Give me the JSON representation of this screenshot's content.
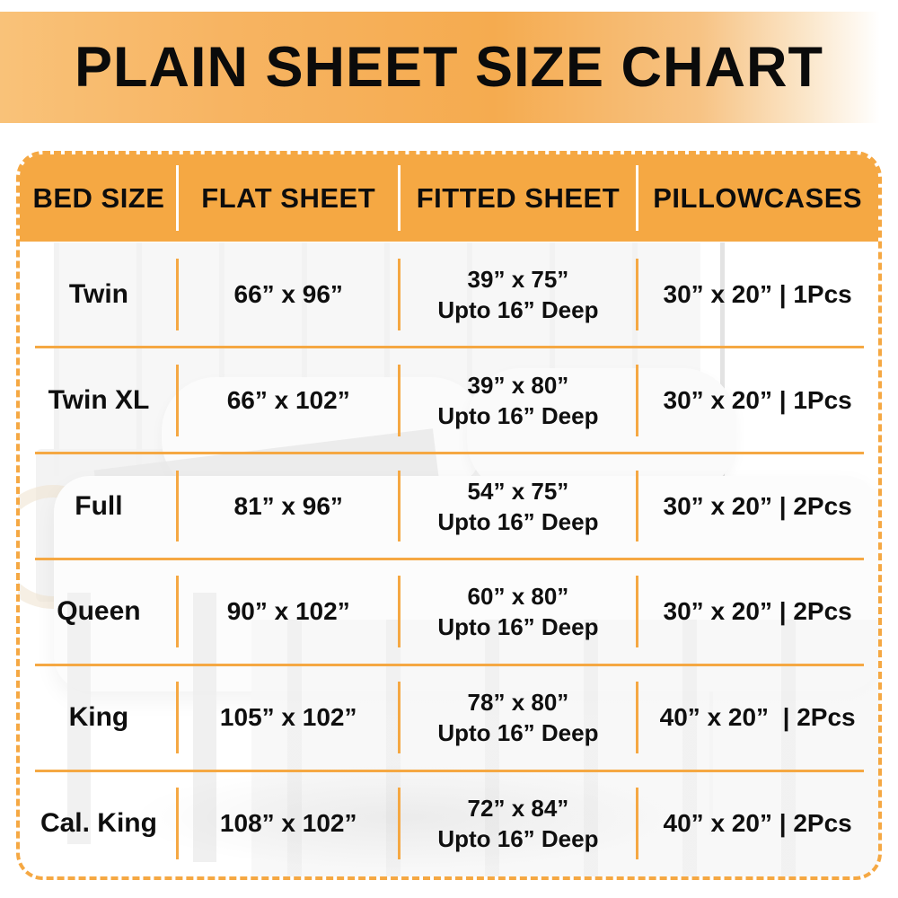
{
  "title": "PLAIN SHEET SIZE CHART",
  "colors": {
    "accent_orange": "#F5A843",
    "banner_gradient_left": "#F9C279",
    "banner_gradient_right": "#FFFFFF",
    "text_black": "#0d0d0d",
    "header_divider_white": "#FFFFFF"
  },
  "chart_data": {
    "type": "table",
    "title": "PLAIN SHEET SIZE CHART",
    "columns": [
      "BED SIZE",
      "FLAT SHEET",
      "FITTED SHEET",
      "PILLOWCASES"
    ],
    "fitted_sheet_cell_format": "two lines: size, depth",
    "rows": [
      [
        "Twin",
        "66” x 96”",
        "39” x 75”",
        "Upto 16” Deep",
        "30” x 20” | 1Pcs"
      ],
      [
        "Twin XL",
        "66” x 102”",
        "39” x 80”",
        "Upto 16” Deep",
        "30” x 20” | 1Pcs"
      ],
      [
        "Full",
        "81” x 96”",
        "54” x 75”",
        "Upto 16” Deep",
        "30” x 20” | 2Pcs"
      ],
      [
        "Queen",
        "90” x 102”",
        "60” x 80”",
        "Upto 16” Deep",
        "30” x 20” | 2Pcs"
      ],
      [
        "King",
        "105” x 102”",
        "78” x 80”",
        "Upto 16” Deep",
        "40” x 20”  | 2Pcs"
      ],
      [
        "Cal. King",
        "108” x 102”",
        "72” x 84”",
        "Upto 16” Deep",
        "40” x 20” | 2Pcs"
      ]
    ]
  }
}
